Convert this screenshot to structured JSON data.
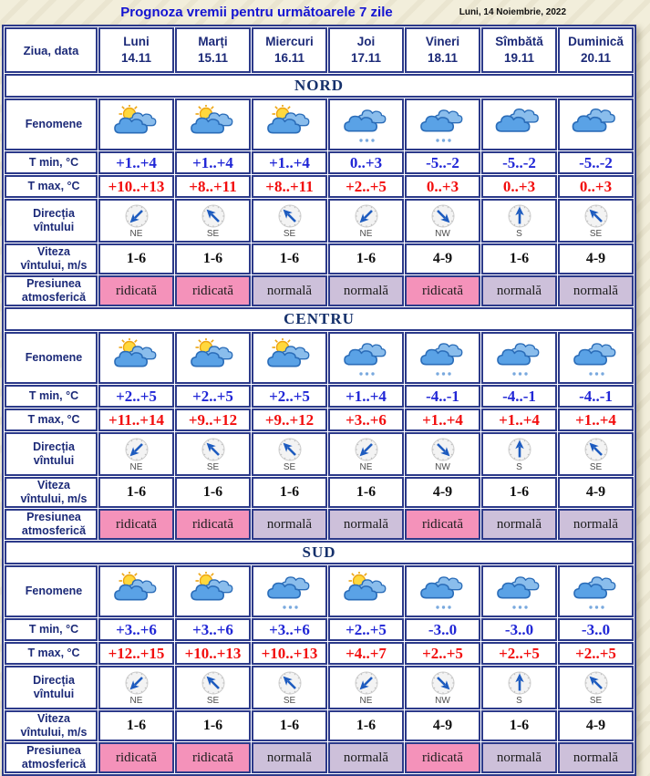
{
  "title": "Prognoza vremii pentru următoarele 7 zile",
  "date_label": "Luni, 14 Noiembrie, 2022",
  "header": {
    "corner": "Ziua, data",
    "days": [
      {
        "name": "Luni",
        "date": "14.11"
      },
      {
        "name": "Marți",
        "date": "15.11"
      },
      {
        "name": "Miercuri",
        "date": "16.11"
      },
      {
        "name": "Joi",
        "date": "17.11"
      },
      {
        "name": "Vineri",
        "date": "18.11"
      },
      {
        "name": "Sîmbătă",
        "date": "19.11"
      },
      {
        "name": "Duminică",
        "date": "20.11"
      }
    ]
  },
  "row_labels": {
    "phenomena": "Fenomene",
    "tmin": "T min, °C",
    "tmax": "T max, °C",
    "wind_dir": "Direcția\nvîntului",
    "wind_speed": "Viteza\nvîntului, m/s",
    "pressure": "Presiunea\natmosferică"
  },
  "regions": [
    {
      "name": "NORD",
      "phenomena": [
        "sun-clouds",
        "sun-clouds",
        "sun-clouds",
        "clouds-drizzle",
        "clouds-drizzle",
        "clouds",
        "clouds"
      ],
      "tmin": [
        "+1..+4",
        "+1..+4",
        "+1..+4",
        "0..+3",
        "-5..-2",
        "-5..-2",
        "-5..-2"
      ],
      "tmax": [
        "+10..+13",
        "+8..+11",
        "+8..+11",
        "+2..+5",
        "0..+3",
        "0..+3",
        "0..+3"
      ],
      "wind_dir": [
        "NE",
        "SE",
        "SE",
        "NE",
        "NW",
        "S",
        "SE"
      ],
      "wind_speed": [
        "1-6",
        "1-6",
        "1-6",
        "1-6",
        "4-9",
        "1-6",
        "4-9"
      ],
      "pressure": [
        "ridicată",
        "ridicată",
        "normală",
        "normală",
        "ridicată",
        "normală",
        "normală"
      ]
    },
    {
      "name": "CENTRU",
      "phenomena": [
        "sun-clouds",
        "sun-clouds",
        "sun-clouds",
        "clouds-drizzle",
        "clouds-drizzle",
        "clouds-drizzle",
        "clouds-drizzle"
      ],
      "tmin": [
        "+2..+5",
        "+2..+5",
        "+2..+5",
        "+1..+4",
        "-4..-1",
        "-4..-1",
        "-4..-1"
      ],
      "tmax": [
        "+11..+14",
        "+9..+12",
        "+9..+12",
        "+3..+6",
        "+1..+4",
        "+1..+4",
        "+1..+4"
      ],
      "wind_dir": [
        "NE",
        "SE",
        "SE",
        "NE",
        "NW",
        "S",
        "SE"
      ],
      "wind_speed": [
        "1-6",
        "1-6",
        "1-6",
        "1-6",
        "4-9",
        "1-6",
        "4-9"
      ],
      "pressure": [
        "ridicată",
        "ridicată",
        "normală",
        "normală",
        "ridicată",
        "normală",
        "normală"
      ]
    },
    {
      "name": "SUD",
      "phenomena": [
        "sun-clouds",
        "sun-clouds",
        "clouds-drizzle",
        "sun-clouds",
        "clouds-drizzle",
        "clouds-drizzle",
        "clouds-drizzle"
      ],
      "tmin": [
        "+3..+6",
        "+3..+6",
        "+3..+6",
        "+2..+5",
        "-3..0",
        "-3..0",
        "-3..0"
      ],
      "tmax": [
        "+12..+15",
        "+10..+13",
        "+10..+13",
        "+4..+7",
        "+2..+5",
        "+2..+5",
        "+2..+5"
      ],
      "wind_dir": [
        "NE",
        "SE",
        "SE",
        "NE",
        "NW",
        "S",
        "SE"
      ],
      "wind_speed": [
        "1-6",
        "1-6",
        "1-6",
        "1-6",
        "4-9",
        "1-6",
        "4-9"
      ],
      "pressure": [
        "ridicată",
        "ridicată",
        "normală",
        "normală",
        "ridicată",
        "normală",
        "normală"
      ]
    }
  ],
  "pressure_styles": {
    "ridicată": "pink",
    "normală": "mauve"
  },
  "wind_rotation": {
    "N": 180,
    "NE": 225,
    "E": 270,
    "SE": 315,
    "S": 0,
    "SW": 45,
    "W": 90,
    "NW": 135
  },
  "colors": {
    "border_navy": "#2c3a8a",
    "header_bg": "#ccd6f0",
    "label_bg": "#c7d1ee",
    "region_band_bg": "#dce5c2",
    "pressure_high_pink": "#f492ba",
    "pressure_normal_mauve": "#cdc0da",
    "tmin_blue": "#2026d6",
    "tmax_red": "#f20d0d",
    "title_blue": "#1414d2",
    "background_cream": "#f2eedb"
  }
}
